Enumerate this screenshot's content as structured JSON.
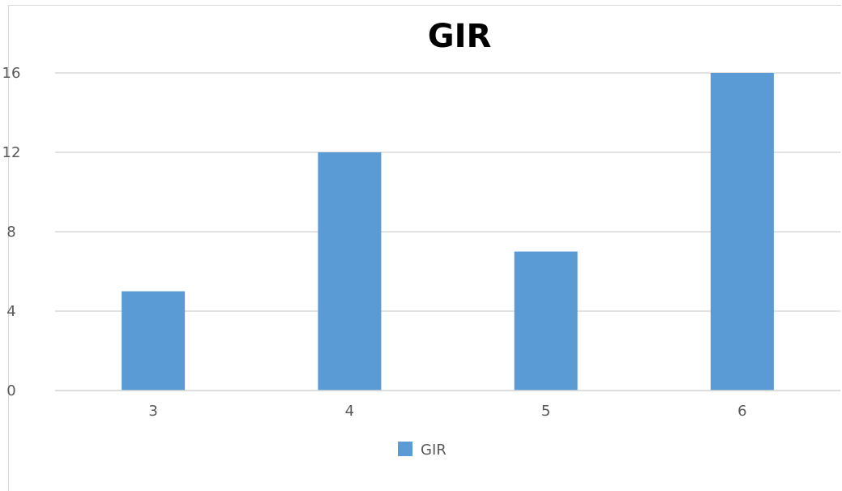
{
  "chart_data": {
    "type": "bar",
    "title": "GIR",
    "categories": [
      "3",
      "4",
      "5",
      "6"
    ],
    "series": [
      {
        "name": "GIR",
        "values": [
          5,
          12,
          7,
          16
        ],
        "color": "#5b9bd5"
      }
    ],
    "xlabel": "",
    "ylabel": "",
    "ylim": [
      0,
      16
    ],
    "yticks": [
      "0",
      "4",
      "8",
      "12",
      "16"
    ],
    "grid": true,
    "legend": "bottom",
    "gridColor": "#d9d9d9"
  }
}
